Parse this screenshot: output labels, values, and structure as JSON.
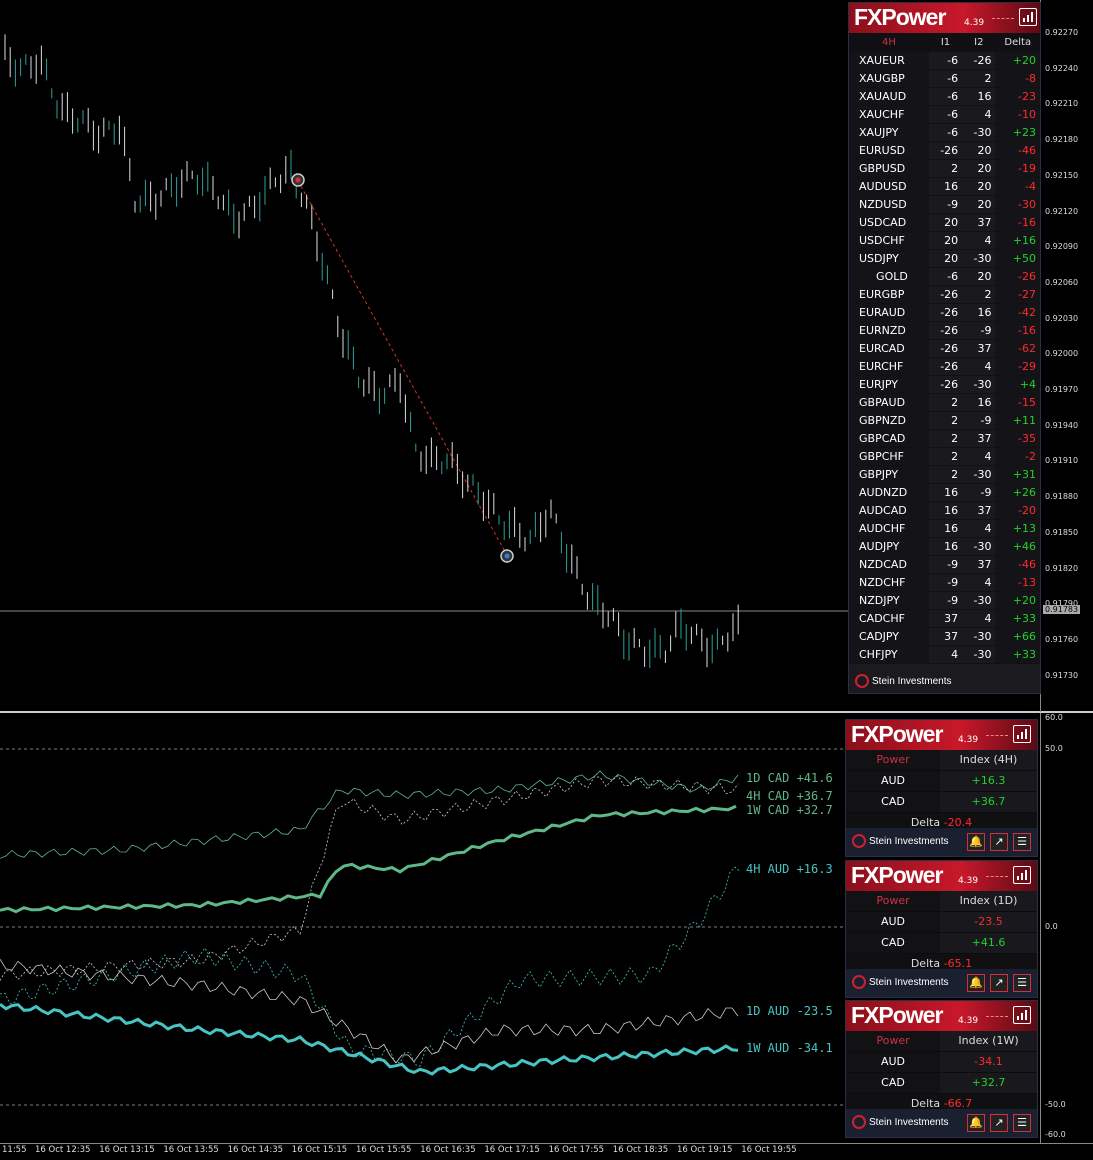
{
  "price_axis": [
    "0.92270",
    "0.92240",
    "0.92210",
    "0.92180",
    "0.92150",
    "0.92120",
    "0.92090",
    "0.92060",
    "0.92030",
    "0.92000",
    "0.91970",
    "0.91940",
    "0.91910",
    "0.91880",
    "0.91850",
    "0.91820",
    "0.91790",
    "0.91760",
    "0.91730"
  ],
  "current_price": "0.91783",
  "indicator_axis": [
    "60.0",
    "50.0",
    "0.0",
    "-50.0",
    "-60.0"
  ],
  "time_axis": [
    "11:55",
    "16 Oct 12:35",
    "16 Oct 13:15",
    "16 Oct 13:55",
    "16 Oct 14:35",
    "16 Oct 15:15",
    "16 Oct 15:55",
    "16 Oct 16:35",
    "16 Oct 17:15",
    "16 Oct 17:55",
    "16 Oct 18:35",
    "16 Oct 19:15",
    "16 Oct 19:55"
  ],
  "line_labels": [
    {
      "text": "1D CAD +41.6",
      "color": "#5fb987"
    },
    {
      "text": "4H CAD +36.7",
      "color": "#5fb987"
    },
    {
      "text": "1W CAD +32.7",
      "color": "#5fb987"
    },
    {
      "text": "4H AUD +16.3",
      "color": "#47c4c4"
    },
    {
      "text": "1D AUD -23.5",
      "color": "#47c4c4"
    },
    {
      "text": "1W AUD -34.1",
      "color": "#47c4c4"
    }
  ],
  "main_panel": {
    "logo": "FXPower",
    "version": "4.39",
    "headers": {
      "tf": "4H",
      "i1": "I1",
      "i2": "I2",
      "delta": "Delta"
    },
    "rows": [
      {
        "sym": "XAUEUR",
        "i1": "-6",
        "i2": "-26",
        "d": "+20"
      },
      {
        "sym": "XAUGBP",
        "i1": "-6",
        "i2": "2",
        "d": "-8"
      },
      {
        "sym": "XAUAUD",
        "i1": "-6",
        "i2": "16",
        "d": "-23"
      },
      {
        "sym": "XAUCHF",
        "i1": "-6",
        "i2": "4",
        "d": "-10"
      },
      {
        "sym": "XAUJPY",
        "i1": "-6",
        "i2": "-30",
        "d": "+23"
      },
      {
        "sym": "EURUSD",
        "i1": "-26",
        "i2": "20",
        "d": "-46"
      },
      {
        "sym": "GBPUSD",
        "i1": "2",
        "i2": "20",
        "d": "-19"
      },
      {
        "sym": "AUDUSD",
        "i1": "16",
        "i2": "20",
        "d": "-4"
      },
      {
        "sym": "NZDUSD",
        "i1": "-9",
        "i2": "20",
        "d": "-30"
      },
      {
        "sym": "USDCAD",
        "i1": "20",
        "i2": "37",
        "d": "-16"
      },
      {
        "sym": "USDCHF",
        "i1": "20",
        "i2": "4",
        "d": "+16"
      },
      {
        "sym": "USDJPY",
        "i1": "20",
        "i2": "-30",
        "d": "+50"
      },
      {
        "sym": "GOLD",
        "i1": "-6",
        "i2": "20",
        "d": "-26"
      },
      {
        "sym": "EURGBP",
        "i1": "-26",
        "i2": "2",
        "d": "-27"
      },
      {
        "sym": "EURAUD",
        "i1": "-26",
        "i2": "16",
        "d": "-42"
      },
      {
        "sym": "EURNZD",
        "i1": "-26",
        "i2": "-9",
        "d": "-16"
      },
      {
        "sym": "EURCAD",
        "i1": "-26",
        "i2": "37",
        "d": "-62"
      },
      {
        "sym": "EURCHF",
        "i1": "-26",
        "i2": "4",
        "d": "-29"
      },
      {
        "sym": "EURJPY",
        "i1": "-26",
        "i2": "-30",
        "d": "+4"
      },
      {
        "sym": "GBPAUD",
        "i1": "2",
        "i2": "16",
        "d": "-15"
      },
      {
        "sym": "GBPNZD",
        "i1": "2",
        "i2": "-9",
        "d": "+11"
      },
      {
        "sym": "GBPCAD",
        "i1": "2",
        "i2": "37",
        "d": "-35"
      },
      {
        "sym": "GBPCHF",
        "i1": "2",
        "i2": "4",
        "d": "-2"
      },
      {
        "sym": "GBPJPY",
        "i1": "2",
        "i2": "-30",
        "d": "+31"
      },
      {
        "sym": "AUDNZD",
        "i1": "16",
        "i2": "-9",
        "d": "+26"
      },
      {
        "sym": "AUDCAD",
        "i1": "16",
        "i2": "37",
        "d": "-20"
      },
      {
        "sym": "AUDCHF",
        "i1": "16",
        "i2": "4",
        "d": "+13"
      },
      {
        "sym": "AUDJPY",
        "i1": "16",
        "i2": "-30",
        "d": "+46"
      },
      {
        "sym": "NZDCAD",
        "i1": "-9",
        "i2": "37",
        "d": "-46"
      },
      {
        "sym": "NZDCHF",
        "i1": "-9",
        "i2": "4",
        "d": "-13"
      },
      {
        "sym": "NZDJPY",
        "i1": "-9",
        "i2": "-30",
        "d": "+20"
      },
      {
        "sym": "CADCHF",
        "i1": "37",
        "i2": "4",
        "d": "+33"
      },
      {
        "sym": "CADJPY",
        "i1": "37",
        "i2": "-30",
        "d": "+66"
      },
      {
        "sym": "CHFJPY",
        "i1": "4",
        "i2": "-30",
        "d": "+33"
      }
    ],
    "brand": "Stein Investments"
  },
  "mini_panels": [
    {
      "logo": "FXPower",
      "version": "4.39",
      "col1": "Power",
      "col2": "Index (4H)",
      "rows": [
        {
          "name": "AUD",
          "value": "+16.3",
          "sign": "pos"
        },
        {
          "name": "CAD",
          "value": "+36.7",
          "sign": "pos"
        }
      ],
      "delta_label": "Delta",
      "delta": "-20.4",
      "brand": "Stein Investments"
    },
    {
      "logo": "FXPower",
      "version": "4.39",
      "col1": "Power",
      "col2": "Index (1D)",
      "rows": [
        {
          "name": "AUD",
          "value": "-23.5",
          "sign": "neg"
        },
        {
          "name": "CAD",
          "value": "+41.6",
          "sign": "pos"
        }
      ],
      "delta_label": "Delta",
      "delta": "-65.1",
      "brand": "Stein Investments"
    },
    {
      "logo": "FXPower",
      "version": "4.39",
      "col1": "Power",
      "col2": "Index (1W)",
      "rows": [
        {
          "name": "AUD",
          "value": "-34.1",
          "sign": "neg"
        },
        {
          "name": "CAD",
          "value": "+32.7",
          "sign": "pos"
        }
      ],
      "delta_label": "Delta",
      "delta": "-66.7",
      "brand": "Stein Investments"
    }
  ],
  "colors": {
    "cad": "#5fb987",
    "aud": "#47c4c4",
    "pos": "#25d02b",
    "neg": "#ff2a2a",
    "brand_red": "#c8182a"
  }
}
